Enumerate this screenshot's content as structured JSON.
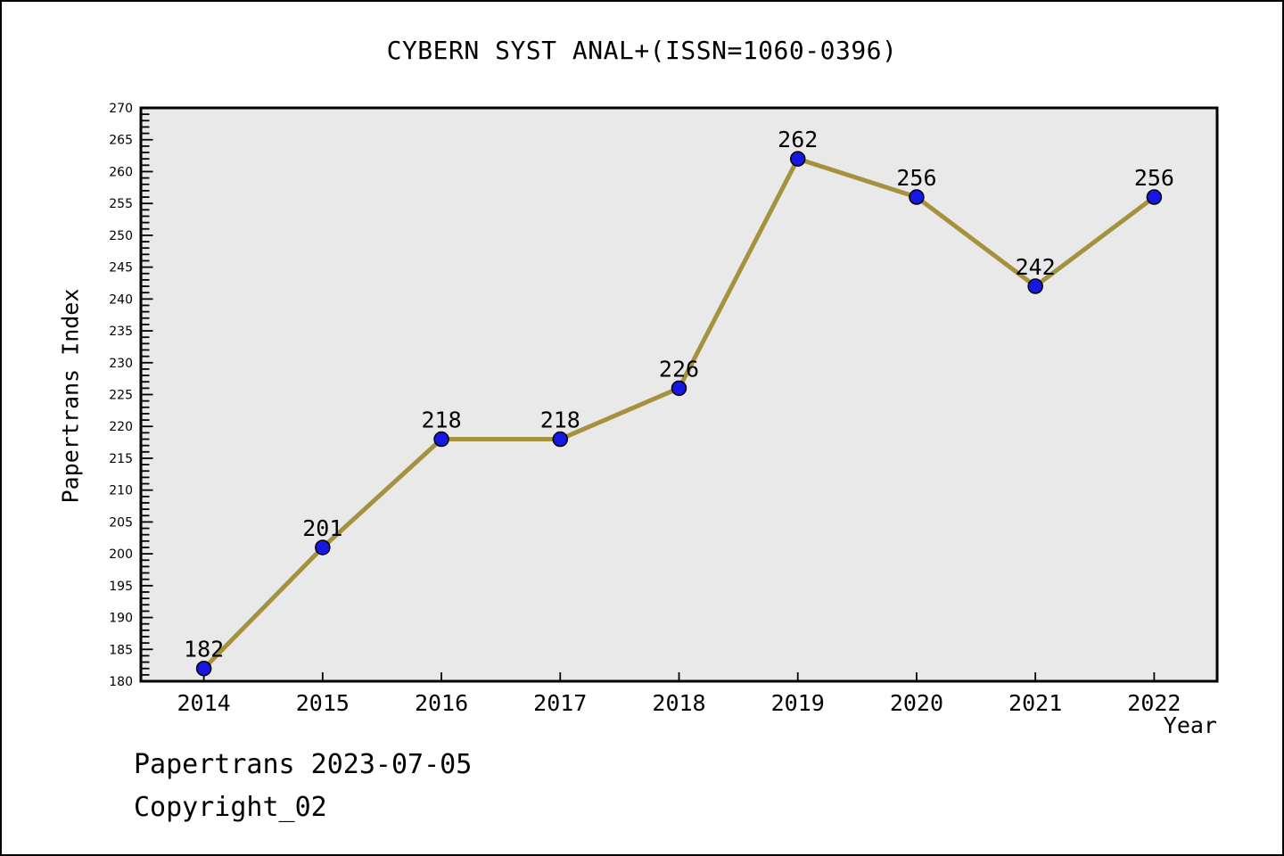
{
  "footer": {
    "line1": "Papertrans 2023-07-05",
    "line2": "Copyright_02"
  },
  "chart_data": {
    "type": "line",
    "title": "CYBERN SYST ANAL+(ISSN=1060-0396)",
    "xlabel": "Year",
    "ylabel": "Papertrans Index",
    "categories": [
      2014,
      2015,
      2016,
      2017,
      2018,
      2019,
      2020,
      2021,
      2022
    ],
    "values": [
      182,
      201,
      218,
      218,
      226,
      262,
      256,
      242,
      256
    ],
    "point_labels": [
      "182",
      "201",
      "218",
      "218",
      "226",
      "262",
      "256",
      "242",
      "256"
    ],
    "xlim": [
      2013.47,
      2022.53
    ],
    "ylim": [
      180,
      270
    ],
    "y_tick_labels": [
      180,
      185,
      190,
      195,
      200,
      205,
      210,
      215,
      220,
      225,
      230,
      235,
      240,
      245,
      250,
      255,
      260,
      265,
      270
    ],
    "y_major_tick_step": 5,
    "y_minor_tick_step": 1,
    "grid": false,
    "legend_position": "none",
    "colors": {
      "line": "#a4923e",
      "marker": "#1717e3",
      "marker_edge": "#000000",
      "plot_bg": "#e9e9e9",
      "axis": "#000000",
      "text": "#000000"
    }
  }
}
